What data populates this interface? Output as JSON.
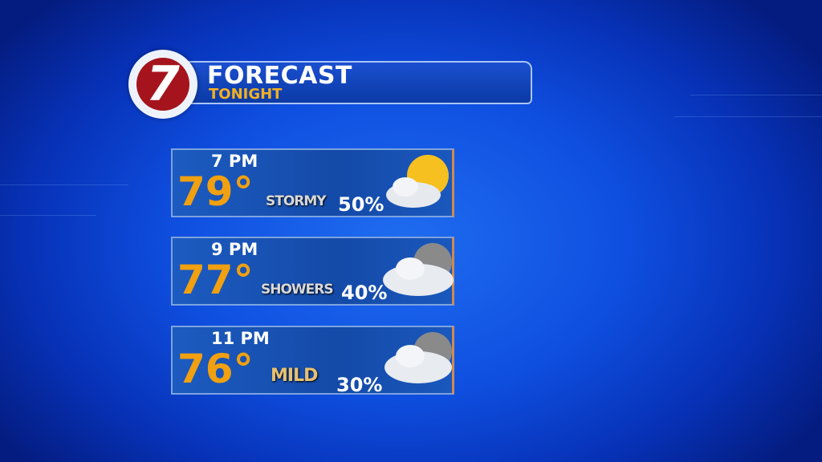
{
  "header": {
    "title": "FORECAST",
    "subtitle": "TONIGHT",
    "logo_text": "7"
  },
  "forecasts": [
    {
      "time": "7 PM",
      "temp": "79°",
      "condition": "STORMY",
      "chance": "50%",
      "icon": "partly-sunny-storm-icon"
    },
    {
      "time": "9 PM",
      "temp": "77°",
      "condition": "SHOWERS",
      "chance": "40%",
      "icon": "moon-cloud-rain-icon"
    },
    {
      "time": "11 PM",
      "temp": "76°",
      "condition": "MILD",
      "chance": "30%",
      "icon": "moon-cloud-rain-icon"
    }
  ],
  "colors": {
    "accent": "#f0a010",
    "logo_red": "#a5141c"
  }
}
